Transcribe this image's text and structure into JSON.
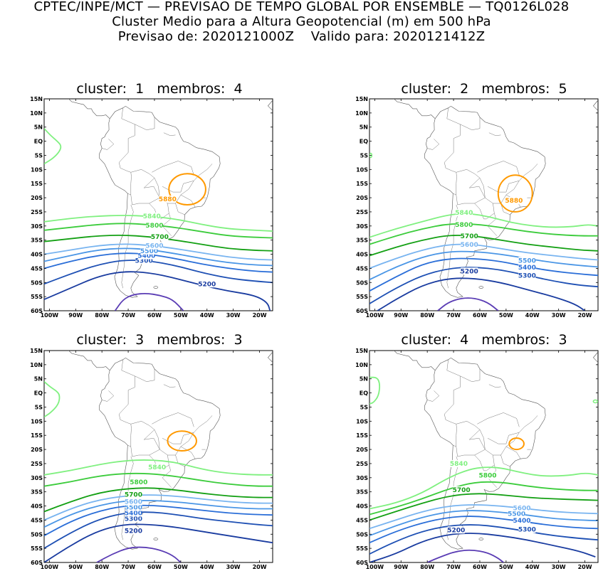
{
  "header": {
    "line1": "CPTEC/INPE/MCT — PREVISAO DE TEMPO GLOBAL POR ENSEMBLE — TQ0126L028",
    "line2": "Cluster Medio para a Altura Geopotencial (m) em 500 hPa",
    "line3": "Previsao de: 2020121000Z    Valido para: 2020121412Z"
  },
  "axes": {
    "lat_ticks": [
      "15N",
      "10N",
      "5N",
      "EQ",
      "5S",
      "10S",
      "15S",
      "20S",
      "25S",
      "30S",
      "35S",
      "40S",
      "45S",
      "50S",
      "55S",
      "60S"
    ],
    "lon_ticks": [
      "100W",
      "90W",
      "80W",
      "70W",
      "60W",
      "50W",
      "40W",
      "30W",
      "20W"
    ]
  },
  "colors": {
    "c5880": "#ff9900",
    "c5840": "#80f080",
    "c5800": "#3ccc3c",
    "c5700": "#14a014",
    "c5600": "#78b4f0",
    "c5500": "#4a96e6",
    "c5400": "#2a6ed8",
    "c5300": "#1e50b4",
    "c5200": "#1a3ca0",
    "c5100": "#5a3cb4",
    "coast": "#555555"
  },
  "panels": [
    {
      "title": "cluster:  1   membros:  4",
      "labels": {
        "5880": "5880",
        "5840": "5840",
        "5800": "5800",
        "5700": "5700",
        "5600": "5600",
        "5500": "5500",
        "5400": "5400",
        "5300": "5300",
        "5200": "5200"
      }
    },
    {
      "title": "cluster:  2   membros:  5",
      "labels": {
        "5880": "5880",
        "5840": "5840",
        "5800": "5800",
        "5700": "5700",
        "5600": "5600",
        "5500": "5500",
        "5400": "5400",
        "5300": "5300",
        "5200": "5200"
      }
    },
    {
      "title": "cluster:  3   membros:  3",
      "labels": {
        "5840": "5840",
        "5800": "5800",
        "5700": "5700",
        "5600": "5600",
        "5500": "5500",
        "5400": "5400",
        "5300": "5300",
        "5200": "5200"
      }
    },
    {
      "title": "cluster:  4   membros:  3",
      "labels": {
        "5840": "5840",
        "5800": "5800",
        "5700": "5700",
        "5600": "5600",
        "5500": "5500",
        "5400": "5400",
        "5300": "5300",
        "5200": "5200"
      }
    }
  ]
}
